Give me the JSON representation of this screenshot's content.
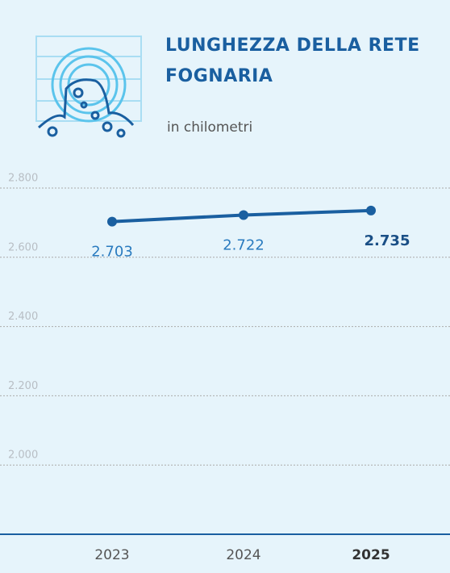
{
  "chart_data": {
    "type": "line",
    "title": "LUNGHEZZA DELLA RETE FOGNARIA",
    "subtitle": "in chilometri",
    "categories": [
      "2023",
      "2024",
      "2025"
    ],
    "series": [
      {
        "name": "Lunghezza",
        "color": "#1a5fa0",
        "values": [
          2703,
          2722,
          2735
        ],
        "value_labels": [
          "2.703",
          "2.722",
          "2.735"
        ]
      }
    ],
    "ylim": [
      1800,
      2800
    ],
    "yticks": [
      {
        "value": 2000,
        "label": "2.000"
      },
      {
        "value": 2200,
        "label": "2.200"
      },
      {
        "value": 2400,
        "label": "2.400"
      },
      {
        "value": 2600,
        "label": "2.600"
      },
      {
        "value": 2800,
        "label": "2.800"
      }
    ],
    "grid": true
  }
}
